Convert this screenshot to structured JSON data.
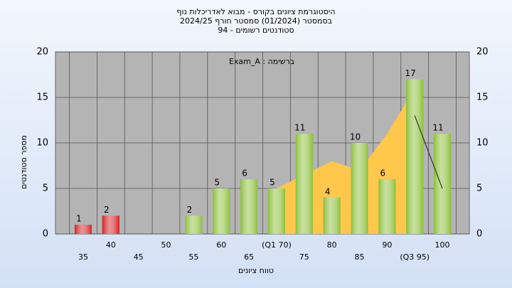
{
  "chart_data": {
    "type": "bar",
    "title": "היסטוגרמת ציונים בקורס - מבוא לאדריכלות נוף",
    "subtitle": "בסמסטר  (01/2024)  סמסטר חורף 2024/25",
    "subtitle2": "סטודנטים רשומים - 94",
    "annotation": "Exam_A : ברשימה",
    "xlabel": "טווח ציונים",
    "ylabel": "מספר סטודנטים",
    "categories": [
      "35",
      "40",
      "45",
      "50",
      "55",
      "60",
      "65",
      "(Q1 70)",
      "75",
      "80",
      "85",
      "90",
      "(Q3 95)",
      "100"
    ],
    "values": [
      1,
      2,
      null,
      null,
      2,
      5,
      6,
      5,
      11,
      4,
      10,
      6,
      17,
      11
    ],
    "colors": [
      "#d42020",
      "#d42020",
      null,
      null,
      "#8cbf3a",
      "#8cbf3a",
      "#8cbf3a",
      "#8cbf3a",
      "#8cbf3a",
      "#8cbf3a",
      "#8cbf3a",
      "#8cbf3a",
      "#8cbf3a",
      "#8cbf3a"
    ],
    "area": {
      "color": "#ffc84a",
      "values": [
        null,
        null,
        null,
        null,
        null,
        null,
        null,
        5,
        6.5,
        8,
        7,
        11,
        16,
        null
      ]
    },
    "line": {
      "color": "#333333",
      "values": [
        null,
        null,
        null,
        null,
        null,
        null,
        null,
        null,
        null,
        null,
        null,
        null,
        13,
        5
      ]
    },
    "ylim": [
      0,
      20
    ],
    "yticks": [
      0,
      5,
      10,
      15,
      20
    ],
    "grid": true
  }
}
